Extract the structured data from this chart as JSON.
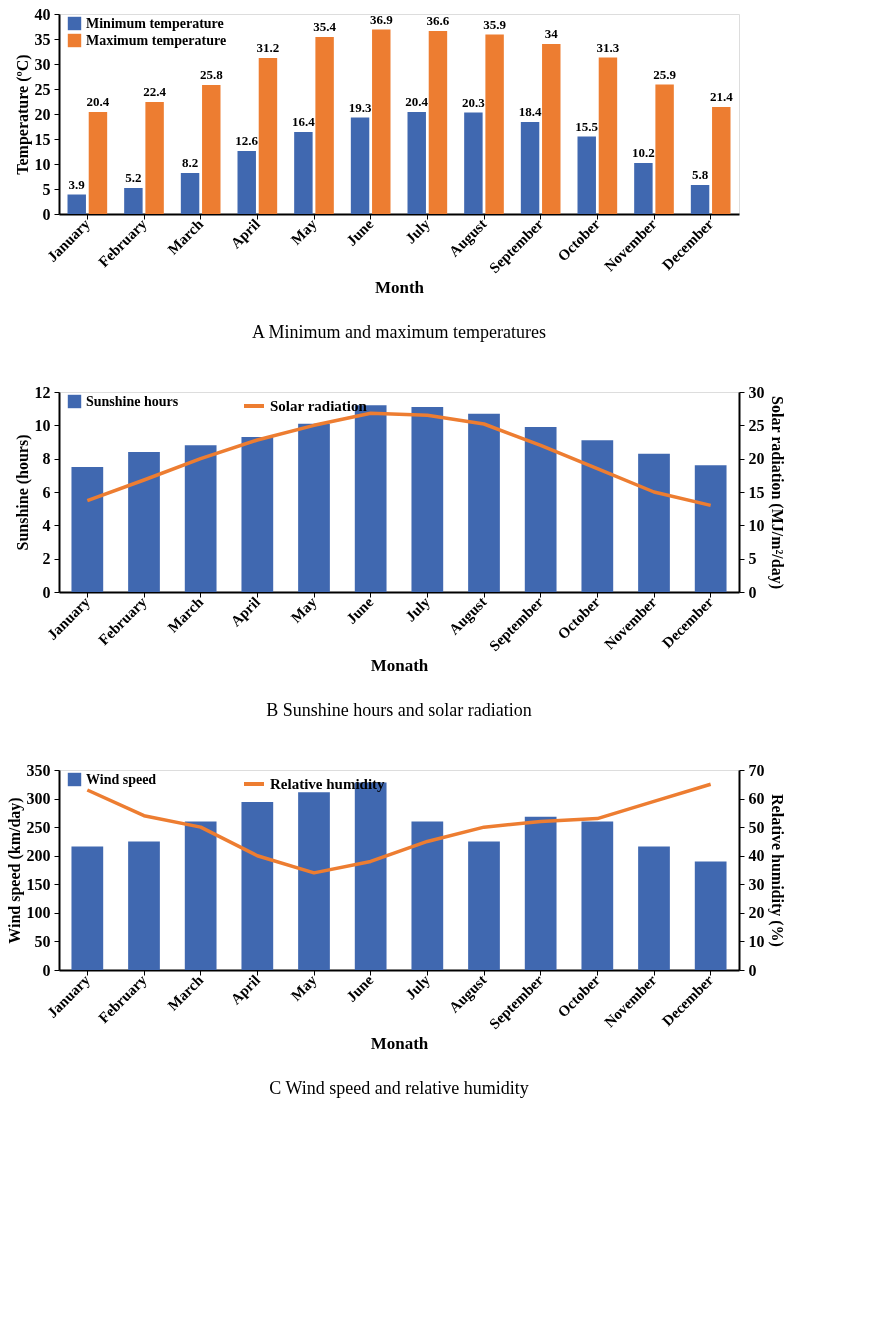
{
  "chart_data": [
    {
      "type": "bar",
      "title": "A  Minimum and maximum temperatures",
      "xlabel": "Month",
      "ylabel": "Temperature (ºC)",
      "categories": [
        "January",
        "February",
        "March",
        "April",
        "May",
        "June",
        "July",
        "August",
        "September",
        "October",
        "November",
        "December"
      ],
      "series": [
        {
          "name": "Minimum temperature",
          "color": "#4068b0",
          "values": [
            3.9,
            5.2,
            8.2,
            12.6,
            16.4,
            19.3,
            20.4,
            20.3,
            18.4,
            15.5,
            10.2,
            5.8
          ]
        },
        {
          "name": "Maximum temperature",
          "color": "#ed7d31",
          "values": [
            20.4,
            22.4,
            25.8,
            31.2,
            35.4,
            36.9,
            36.6,
            35.9,
            34,
            31.3,
            25.9,
            21.4
          ]
        }
      ],
      "ylim": [
        0,
        40
      ],
      "yticks": [
        0,
        5,
        10,
        15,
        20,
        25,
        30,
        35,
        40
      ],
      "data_labels": true,
      "legend": "top left",
      "grid": false
    },
    {
      "type": "bar",
      "title": "B  Sunshine hours and solar radiation",
      "xlabel": "Monath",
      "ylabel": "Sunshine (hours)",
      "y2label": "Solar radiation (MJ/m²/day)",
      "categories": [
        "January",
        "February",
        "March",
        "April",
        "May",
        "June",
        "July",
        "August",
        "September",
        "October",
        "November",
        "December"
      ],
      "series": [
        {
          "name": "Sunshine hours",
          "color": "#4068b0",
          "values": [
            7.5,
            8.4,
            8.8,
            9.3,
            10.1,
            11.2,
            11.1,
            10.7,
            9.9,
            9.1,
            8.3,
            7.6
          ]
        },
        {
          "name": "Solar radiation",
          "type": "line",
          "axis": "y2",
          "color": "#ed7d31",
          "values": [
            13.7,
            16.8,
            20.0,
            22.8,
            25.0,
            26.8,
            26.5,
            25.2,
            22.0,
            18.5,
            15.0,
            13.0
          ]
        }
      ],
      "ylim": [
        0,
        12
      ],
      "yticks": [
        0,
        2,
        4,
        6,
        8,
        10,
        12
      ],
      "y2lim": [
        0,
        30
      ],
      "y2ticks": [
        0,
        5,
        10,
        15,
        20,
        25,
        30
      ],
      "legend": "top left",
      "grid": false
    },
    {
      "type": "bar",
      "title": "C  Wind speed and relative humidity",
      "xlabel": "Monath",
      "ylabel": "Wind speed (km/day)",
      "y2label": "Relative humidity (%)",
      "categories": [
        "January",
        "February",
        "March",
        "April",
        "May",
        "June",
        "July",
        "August",
        "September",
        "October",
        "November",
        "December"
      ],
      "series": [
        {
          "name": "Wind speed",
          "color": "#4068b0",
          "values": [
            216,
            225,
            260,
            294,
            311,
            328,
            260,
            225,
            268,
            260,
            216,
            190
          ]
        },
        {
          "name": "Relative humidity",
          "type": "line",
          "axis": "y2",
          "color": "#ed7d31",
          "values": [
            63,
            54,
            50,
            40,
            34,
            38,
            45,
            50,
            52,
            53,
            59,
            65
          ]
        }
      ],
      "ylim": [
        0,
        350
      ],
      "yticks": [
        0,
        50,
        100,
        150,
        200,
        250,
        300,
        350
      ],
      "y2lim": [
        0,
        70
      ],
      "y2ticks": [
        0,
        10,
        20,
        30,
        40,
        50,
        60,
        70
      ],
      "legend": "top left",
      "grid": false
    }
  ]
}
